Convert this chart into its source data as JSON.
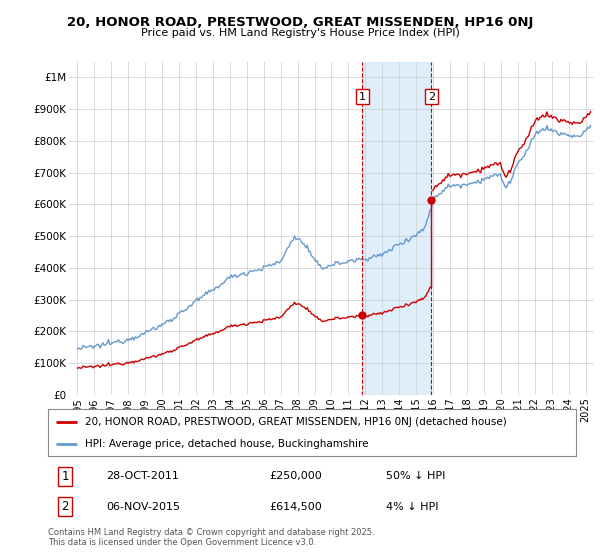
{
  "title": "20, HONOR ROAD, PRESTWOOD, GREAT MISSENDEN, HP16 0NJ",
  "subtitle": "Price paid vs. HM Land Registry's House Price Index (HPI)",
  "legend_line1": "20, HONOR ROAD, PRESTWOOD, GREAT MISSENDEN, HP16 0NJ (detached house)",
  "legend_line2": "HPI: Average price, detached house, Buckinghamshire",
  "annotation1_date": "28-OCT-2011",
  "annotation1_price": "£250,000",
  "annotation1_hpi": "50% ↓ HPI",
  "annotation2_date": "06-NOV-2015",
  "annotation2_price": "£614,500",
  "annotation2_hpi": "4% ↓ HPI",
  "footer": "Contains HM Land Registry data © Crown copyright and database right 2025.\nThis data is licensed under the Open Government Licence v3.0.",
  "house_color": "#cc0000",
  "hpi_color": "#6699cc",
  "shade_color": "#d0e8f8",
  "ylim": [
    0,
    1050000
  ],
  "yticks": [
    0,
    100000,
    200000,
    300000,
    400000,
    500000,
    600000,
    700000,
    800000,
    900000,
    1000000
  ],
  "ytick_labels": [
    "£0",
    "£100K",
    "£200K",
    "£300K",
    "£400K",
    "£500K",
    "£600K",
    "£700K",
    "£800K",
    "£900K",
    "£1M"
  ],
  "purchase1_x": 2011.83,
  "purchase1_y": 250000,
  "purchase2_x": 2015.9,
  "purchase2_y": 614500,
  "vline1_x": 2011.83,
  "vline2_x": 2015.9,
  "xlim_left": 1994.5,
  "xlim_right": 2025.5
}
